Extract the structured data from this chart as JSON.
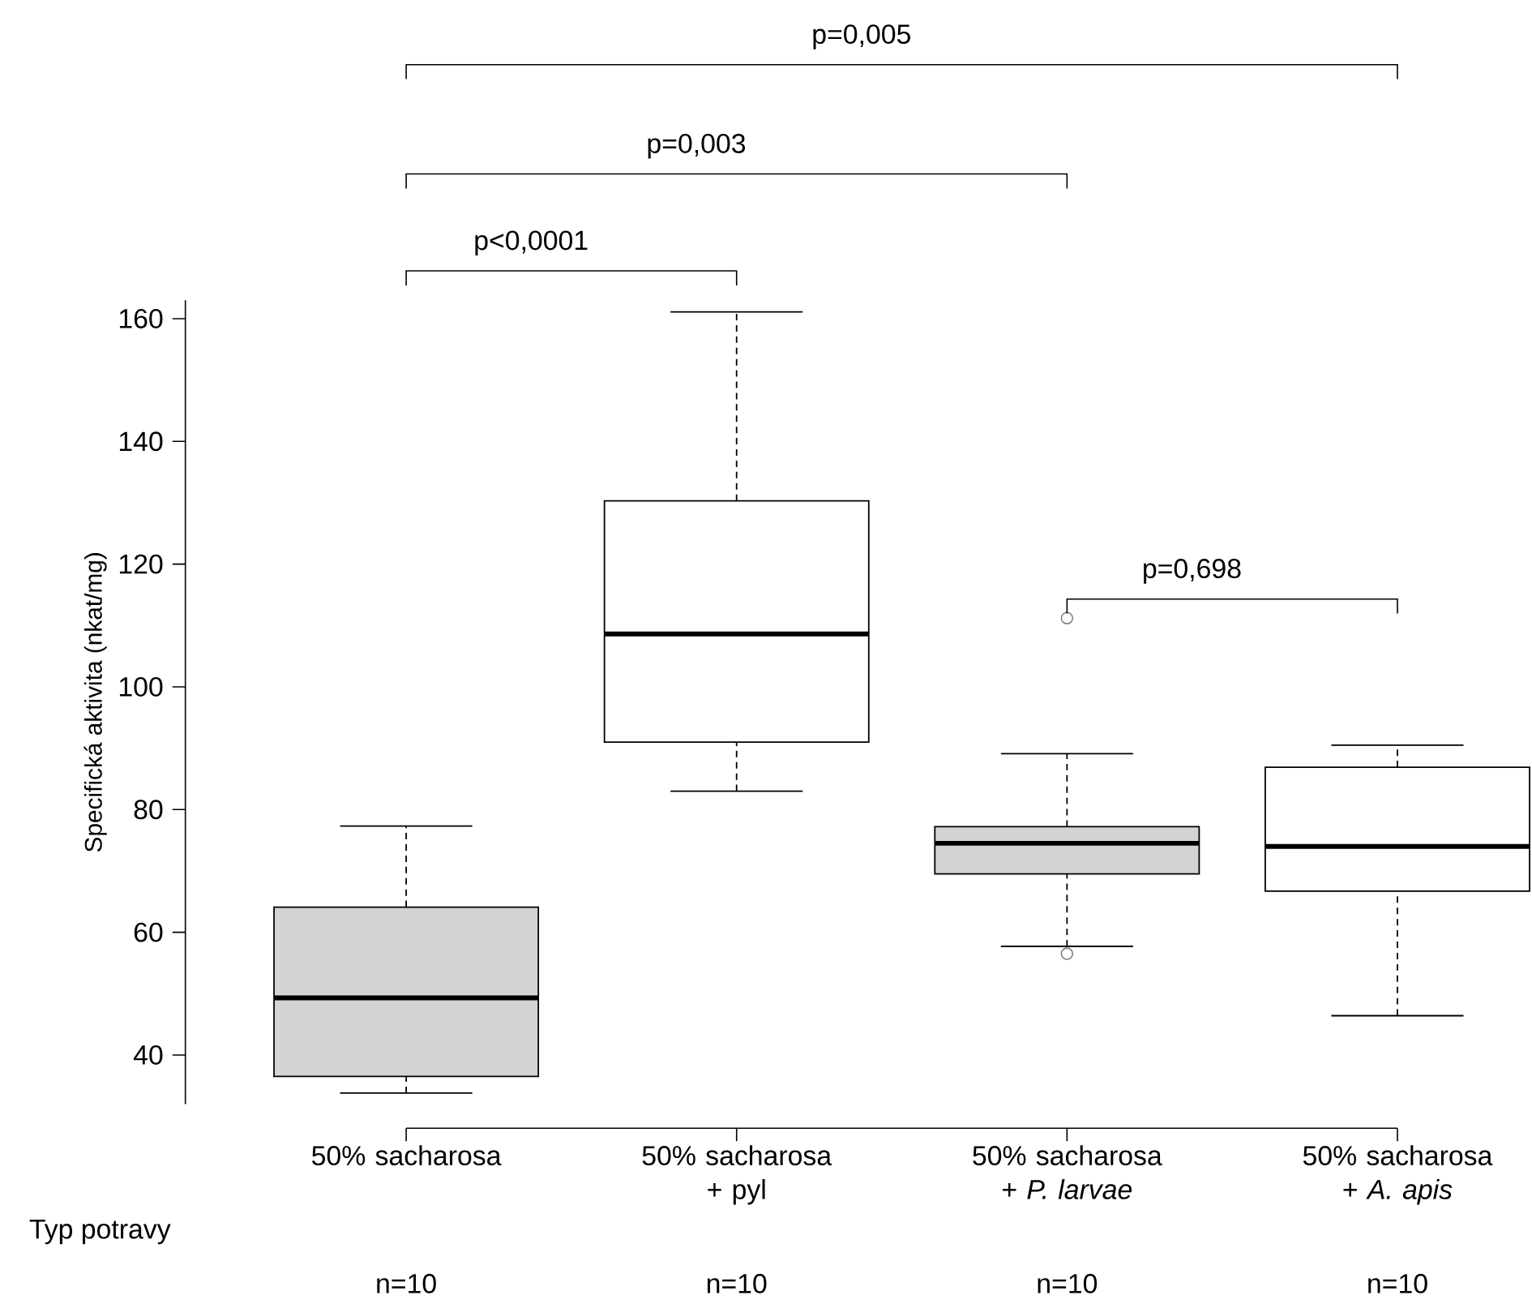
{
  "chart_data": {
    "type": "box",
    "xlabel": "Typ potravy",
    "ylabel": "Specifická aktivita (nkat/mg)",
    "categories": [
      "50% sacharosa",
      "50% sacharosa + pyl",
      "50% sacharosa + *P. larvae*",
      "50% sacharosa + *A. apis*"
    ],
    "boxes": [
      {
        "low": 33.8,
        "q1": 36.5,
        "median": 49.3,
        "q3": 64.1,
        "high": 77.3
      },
      {
        "low": 83.0,
        "q1": 91.0,
        "median": 108.6,
        "q3": 130.3,
        "high": 161.1
      },
      {
        "low": 57.7,
        "q1": 69.5,
        "median": 74.5,
        "q3": 77.2,
        "high": 89.1,
        "outliers": [
          111.2,
          56.5
        ]
      },
      {
        "low": 46.4,
        "q1": 66.7,
        "median": 74.0,
        "q3": 86.9,
        "high": 90.5
      }
    ],
    "colors": [
      "#d3d3d3",
      "#ffffff",
      "#d3d3d3",
      "#ffffff"
    ],
    "ylim": [
      32,
      163
    ],
    "yticks": [
      40,
      60,
      80,
      100,
      120,
      140,
      160
    ],
    "grid": false,
    "annotations": [
      "p<0,0001",
      "p=0,003",
      "p=0,005",
      "p=0,698",
      "n=10",
      "n=10",
      "n=10",
      "n=10"
    ]
  }
}
